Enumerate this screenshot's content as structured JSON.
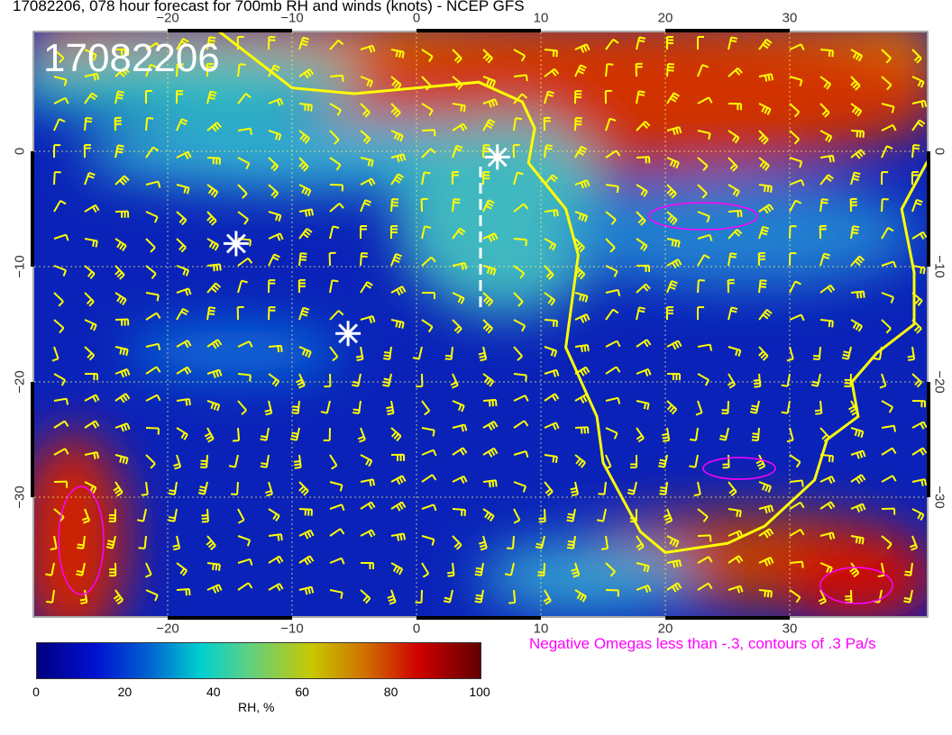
{
  "title": "17082206, 078 hour forecast for 700mb RH and winds (knots) - NCEP GFS",
  "date_stamp": "17082206",
  "lon_ticks": [
    "−20",
    "−10",
    "0",
    "10",
    "20",
    "30"
  ],
  "lat_ticks": [
    "0",
    "−10",
    "−20",
    "−30"
  ],
  "omega_note": "Negative Omegas less than -.3, contours of .3 Pa/s",
  "colorbar": {
    "label": "RH, %",
    "ticks": [
      "0",
      "20",
      "40",
      "60",
      "80",
      "100"
    ],
    "colors": [
      "#000080",
      "#0010d0",
      "#0060d0",
      "#00d0d0",
      "#60d080",
      "#c8c800",
      "#d07000",
      "#d00000",
      "#600000"
    ]
  },
  "colors": {
    "coastline": "#ffff00",
    "wind_barbs": "#ffff00",
    "omega_contours": "#ff00ff",
    "markers": "#ffffff"
  }
}
